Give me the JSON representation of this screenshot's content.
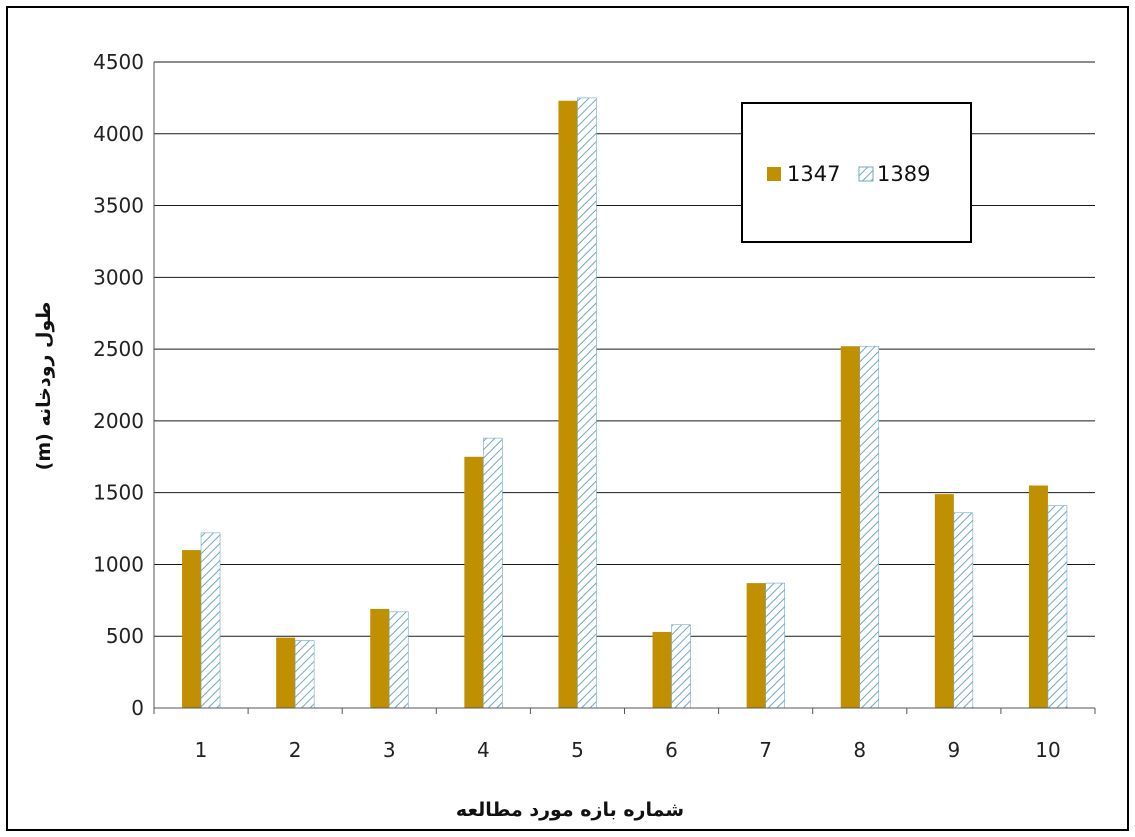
{
  "chart_data": {
    "type": "bar",
    "categories": [
      "1",
      "2",
      "3",
      "4",
      "5",
      "6",
      "7",
      "8",
      "9",
      "10"
    ],
    "series": [
      {
        "name": "1347",
        "values": [
          1100,
          490,
          690,
          1750,
          4230,
          530,
          870,
          2520,
          1490,
          1550
        ],
        "color": "#C09000",
        "pattern": "solid"
      },
      {
        "name": "1389",
        "values": [
          1220,
          470,
          670,
          1880,
          4250,
          580,
          870,
          2520,
          1360,
          1410
        ],
        "color": "#6FA8C8",
        "pattern": "diagonal-hatch"
      }
    ],
    "y_ticks": [
      "0",
      "500",
      "1000",
      "1500",
      "2000",
      "2500",
      "3000",
      "3500",
      "4000",
      "4500"
    ],
    "ylim": [
      0,
      4500
    ],
    "xlabel": "شماره بازه مورد مطالعه",
    "ylabel": "طول رودخانه (m)",
    "grid": "horizontal",
    "legend_position": "top-right"
  }
}
